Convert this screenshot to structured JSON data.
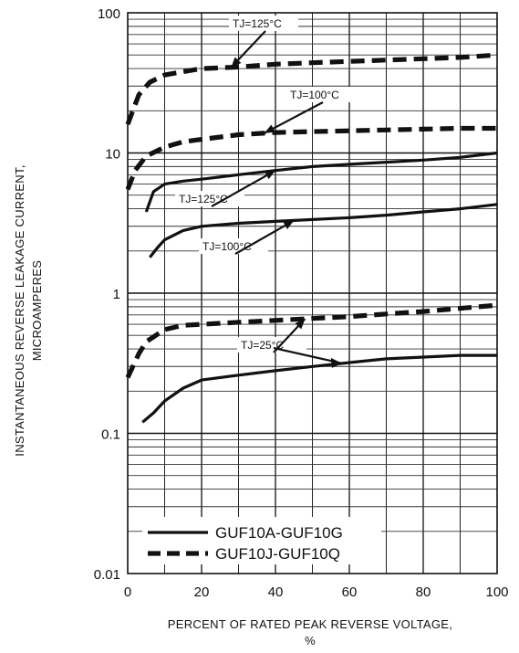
{
  "chart_data": {
    "type": "line",
    "title": "",
    "xlabel_line1": "PERCENT OF RATED PEAK REVERSE VOLTAGE,",
    "xlabel_line2": "%",
    "ylabel_line1": "INSTANTANEOUS REVERSE LEAKAGE CURRENT,",
    "ylabel_line2": "MICROAMPERES",
    "xlim": [
      0,
      100
    ],
    "ylim": [
      0.01,
      100
    ],
    "y_scale": "log",
    "grid": true,
    "x_ticks": [
      0,
      20,
      40,
      60,
      80,
      100
    ],
    "x_tick_labels": [
      "0",
      "20",
      "40",
      "60",
      "80",
      "100"
    ],
    "y_ticks": [
      0.01,
      0.1,
      1,
      10,
      100
    ],
    "y_tick_labels": [
      "0.01",
      "0.1",
      "1",
      "10",
      "100"
    ],
    "legend_position": "bottom-left",
    "legend": [
      {
        "label": "GUF10A-GUF10G",
        "style": "solid"
      },
      {
        "label": "GUF10J-GUF10Q",
        "style": "dashed"
      }
    ],
    "series": [
      {
        "style": "solid",
        "temp_label": "TJ=125°C",
        "x": [
          5,
          7,
          10,
          15,
          20,
          30,
          40,
          50,
          60,
          70,
          80,
          90,
          100
        ],
        "y": [
          3.8,
          5.3,
          6.0,
          6.3,
          6.5,
          7.0,
          7.5,
          8.0,
          8.3,
          8.6,
          8.9,
          9.3,
          10
        ]
      },
      {
        "style": "solid",
        "temp_label": "TJ=100°C",
        "x": [
          6,
          8,
          10,
          15,
          20,
          30,
          40,
          50,
          60,
          70,
          80,
          90,
          100
        ],
        "y": [
          1.8,
          2.1,
          2.4,
          2.8,
          3.0,
          3.15,
          3.25,
          3.35,
          3.45,
          3.6,
          3.8,
          4.0,
          4.3
        ]
      },
      {
        "style": "solid",
        "temp_label": "TJ=25°C",
        "x": [
          4,
          7,
          10,
          15,
          20,
          30,
          40,
          50,
          60,
          70,
          80,
          90,
          100
        ],
        "y": [
          0.12,
          0.14,
          0.17,
          0.21,
          0.24,
          0.26,
          0.28,
          0.3,
          0.32,
          0.34,
          0.35,
          0.36,
          0.36
        ]
      },
      {
        "style": "dashed",
        "temp_label": "TJ=125°C",
        "x": [
          0,
          3,
          6,
          10,
          15,
          20,
          30,
          40,
          50,
          60,
          70,
          80,
          90,
          100
        ],
        "y": [
          16,
          26,
          32,
          36,
          38,
          40,
          41,
          43,
          44,
          45,
          46,
          47,
          48,
          50
        ]
      },
      {
        "style": "dashed",
        "temp_label": "TJ=100°C",
        "x": [
          0,
          2,
          5,
          10,
          15,
          20,
          30,
          40,
          50,
          60,
          70,
          80,
          90,
          100
        ],
        "y": [
          5.5,
          7.5,
          9.5,
          11,
          12,
          12.5,
          13.5,
          14,
          14.2,
          14.4,
          14.6,
          14.8,
          15,
          15
        ]
      },
      {
        "style": "dashed",
        "temp_label": "TJ=25°C",
        "x": [
          0,
          3,
          5,
          10,
          15,
          20,
          30,
          40,
          50,
          60,
          70,
          80,
          90,
          100
        ],
        "y": [
          0.25,
          0.37,
          0.45,
          0.55,
          0.59,
          0.6,
          0.62,
          0.64,
          0.66,
          0.68,
          0.71,
          0.74,
          0.78,
          0.82
        ]
      }
    ],
    "annotations": [
      {
        "text": "TJ=125°C",
        "series": 3,
        "at_x": 28
      },
      {
        "text": "TJ=100°C",
        "series": 4,
        "at_x": 37
      },
      {
        "text": "TJ=125°C",
        "series": 0,
        "at_x": 40
      },
      {
        "text": "TJ=100°C",
        "series": 1,
        "at_x": 45
      },
      {
        "text": "TJ=25°C",
        "series": 5,
        "at_x": 48
      },
      {
        "text": "TJ=25°C",
        "series": 2,
        "at_x": 58
      }
    ]
  }
}
